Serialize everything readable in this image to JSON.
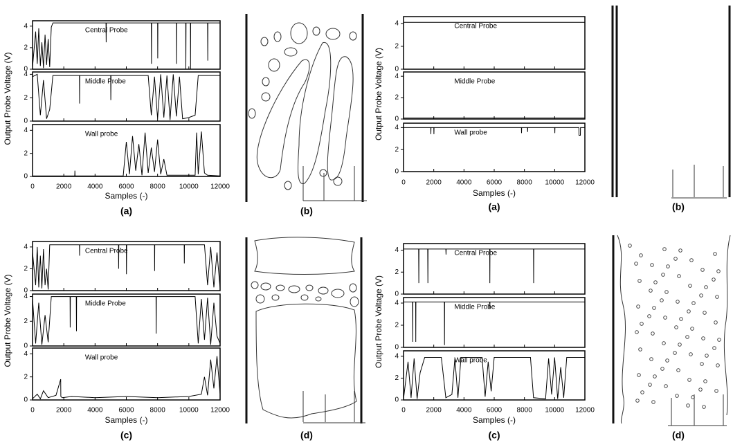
{
  "chart_data": [
    {
      "type": "line",
      "ylabel": "Output Probe Voltage (V)",
      "xlabel": "Samples (-)",
      "caption": "(a)",
      "xlim": [
        0,
        12000
      ],
      "xticks": [
        0,
        2000,
        4000,
        6000,
        8000,
        10000,
        12000
      ],
      "subplots": [
        {
          "label": "Central Probe",
          "color": "#000000",
          "ylim": [
            0,
            4.5
          ],
          "yticks": [
            0,
            2,
            4
          ],
          "x": [
            0,
            200,
            300,
            400,
            500,
            600,
            700,
            800,
            900,
            1000,
            1100,
            1200,
            1300,
            1400,
            4700,
            4710,
            4720,
            7600,
            7610,
            7620,
            8000,
            8010,
            8020,
            9200,
            9210,
            9220,
            9800,
            9810,
            9820,
            10100,
            10110,
            10120,
            11200,
            11210,
            11220,
            12000
          ],
          "values": [
            0.2,
            3.5,
            0.5,
            3.8,
            0.3,
            2.5,
            0.1,
            3.2,
            0.4,
            2.8,
            0.2,
            3.9,
            4.3,
            4.3,
            4.3,
            2.5,
            4.3,
            4.3,
            0.5,
            4.3,
            4.3,
            1.0,
            4.3,
            4.3,
            0.5,
            4.3,
            4.3,
            0.0,
            4.3,
            4.3,
            0.0,
            4.3,
            4.3,
            0.8,
            4.3,
            4.3
          ]
        },
        {
          "label": "Middle Probe",
          "color": "#000000",
          "ylim": [
            0,
            4.2
          ],
          "yticks": [
            0,
            2,
            4
          ],
          "x": [
            0,
            300,
            500,
            700,
            900,
            1100,
            1300,
            1500,
            3000,
            3010,
            3020,
            5000,
            5010,
            5020,
            7400,
            7600,
            7800,
            8000,
            8200,
            8400,
            8600,
            8800,
            9000,
            9200,
            9400,
            9600,
            10000,
            10400,
            10600,
            12000
          ],
          "values": [
            3.8,
            4.0,
            0.5,
            3.5,
            0.2,
            1.0,
            3.9,
            3.9,
            3.9,
            1.5,
            3.9,
            3.9,
            1.8,
            3.9,
            3.9,
            0.5,
            3.8,
            0.2,
            4.0,
            0.3,
            3.9,
            0.1,
            4.0,
            0.4,
            3.8,
            0.2,
            0.3,
            0.5,
            3.9,
            3.9
          ]
        },
        {
          "label": "Wall probe",
          "color": "#000000",
          "ylim": [
            0,
            4.5
          ],
          "yticks": [
            0,
            2,
            4
          ],
          "x": [
            0,
            2700,
            2710,
            2720,
            5800,
            6000,
            6200,
            6400,
            6600,
            6800,
            7000,
            7200,
            7400,
            7600,
            7800,
            8000,
            8200,
            8400,
            8600,
            9000,
            10400,
            10500,
            10600,
            10800,
            11000,
            11200,
            12000
          ],
          "values": [
            0.05,
            0.05,
            0.5,
            0.05,
            0.05,
            3.0,
            0.2,
            3.5,
            0.5,
            2.8,
            0.1,
            3.8,
            0.3,
            2.5,
            0.4,
            3.2,
            0.2,
            1.5,
            0.1,
            0.1,
            0.1,
            3.8,
            0.2,
            3.9,
            0.3,
            0.1,
            0.05
          ]
        }
      ]
    },
    {
      "type": "line",
      "ylabel": "Output Probe Voltage (V)",
      "xlabel": "Samples (-)",
      "caption": "(a)",
      "xlim": [
        0,
        12000
      ],
      "xticks": [
        0,
        2000,
        4000,
        6000,
        8000,
        10000,
        12000
      ],
      "subplots": [
        {
          "label": "Central Probe",
          "color": "#000000",
          "ylim": [
            0,
            4.6
          ],
          "yticks": [
            0,
            2,
            4
          ],
          "x": [
            0,
            12000
          ],
          "values": [
            4.1,
            4.1
          ]
        },
        {
          "label": "Middle Probe",
          "color": "#000000",
          "ylim": [
            0,
            4.4
          ],
          "yticks": [
            0,
            2,
            4
          ],
          "x": [
            0,
            12000
          ],
          "values": [
            0.1,
            0.1
          ]
        },
        {
          "label": "Wall probe",
          "color": "#000000",
          "ylim": [
            0,
            4.4
          ],
          "yticks": [
            0,
            2,
            4
          ],
          "x": [
            0,
            1800,
            1810,
            1820,
            2000,
            2010,
            2020,
            7800,
            7810,
            7820,
            8200,
            8210,
            8220,
            10000,
            10010,
            10020,
            11600,
            11610,
            11700,
            11710,
            12000
          ],
          "values": [
            4.0,
            4.0,
            3.4,
            4.0,
            4.0,
            3.4,
            4.0,
            4.0,
            3.5,
            4.0,
            4.0,
            3.6,
            4.0,
            4.0,
            3.5,
            4.0,
            4.0,
            3.3,
            3.3,
            4.0,
            4.0
          ]
        }
      ]
    },
    {
      "type": "line",
      "ylabel": "Output Probe Voltage (V)",
      "xlabel": "Samples (-)",
      "caption": "(c)",
      "xlim": [
        0,
        12000
      ],
      "xticks": [
        0,
        2000,
        4000,
        6000,
        8000,
        10000,
        12000
      ],
      "subplots": [
        {
          "label": "Central Probe",
          "color": "#000000",
          "ylim": [
            0,
            4.5
          ],
          "yticks": [
            0,
            2,
            4
          ],
          "x": [
            0,
            200,
            300,
            400,
            500,
            600,
            700,
            800,
            900,
            1000,
            1100,
            1200,
            3000,
            3010,
            3020,
            5500,
            5510,
            5520,
            6000,
            6010,
            6020,
            7800,
            7810,
            7820,
            9700,
            9710,
            9720,
            11000,
            11200,
            11400,
            11600,
            11800,
            12000
          ],
          "values": [
            3.5,
            0.5,
            4.0,
            0.3,
            3.2,
            0.2,
            3.8,
            0.5,
            2.0,
            0.1,
            4.2,
            4.2,
            4.2,
            3.2,
            4.2,
            4.2,
            2.0,
            4.2,
            4.2,
            1.5,
            4.2,
            4.2,
            1.8,
            4.2,
            4.2,
            2.5,
            4.2,
            4.2,
            0.5,
            4.0,
            0.3,
            3.5,
            0.2
          ]
        },
        {
          "label": "Middle Probe",
          "color": "#000000",
          "ylim": [
            0,
            4.2
          ],
          "yticks": [
            0,
            2,
            4
          ],
          "x": [
            0,
            200,
            400,
            600,
            800,
            1000,
            1200,
            1400,
            2400,
            2410,
            2420,
            2800,
            2810,
            2820,
            7900,
            7910,
            7920,
            10400,
            10600,
            10800,
            11000,
            11200,
            11400,
            11600,
            11800,
            12000
          ],
          "values": [
            3.8,
            0.2,
            3.5,
            0.1,
            2.5,
            0.3,
            4.0,
            4.0,
            4.0,
            1.5,
            4.0,
            4.0,
            1.2,
            4.0,
            4.0,
            1.0,
            4.0,
            4.0,
            0.2,
            3.8,
            0.5,
            3.9,
            0.1,
            3.5,
            0.8,
            0.2
          ]
        },
        {
          "label": "Wall probe",
          "color": "#000000",
          "ylim": [
            0,
            4.5
          ],
          "yticks": [
            0,
            2,
            4
          ],
          "x": [
            0,
            300,
            500,
            700,
            1000,
            1500,
            1800,
            1810,
            1900,
            2500,
            4000,
            6000,
            8000,
            10000,
            10800,
            11000,
            11200,
            11400,
            11600,
            11800,
            12000
          ],
          "values": [
            0.1,
            0.5,
            0.1,
            0.8,
            0.2,
            0.4,
            1.8,
            0.3,
            0.2,
            0.3,
            0.2,
            0.3,
            0.2,
            0.3,
            0.5,
            2.0,
            0.4,
            3.5,
            1.0,
            3.8,
            0.5
          ]
        }
      ]
    },
    {
      "type": "line",
      "ylabel": "Output Probe Voltage (V)",
      "xlabel": "Samples (-)",
      "caption": "(c)",
      "xlim": [
        0,
        12000
      ],
      "xticks": [
        0,
        2000,
        4000,
        6000,
        8000,
        10000,
        12000
      ],
      "subplots": [
        {
          "label": "Central Probe",
          "color": "#000000",
          "ylim": [
            0,
            4.6
          ],
          "yticks": [
            0,
            2,
            4
          ],
          "x": [
            0,
            1000,
            1010,
            1020,
            1600,
            1610,
            1620,
            2800,
            2810,
            2820,
            5700,
            5710,
            5720,
            8600,
            8610,
            8620,
            12000
          ],
          "values": [
            4.1,
            4.1,
            1.0,
            4.1,
            4.1,
            1.0,
            4.1,
            4.1,
            3.6,
            4.1,
            4.1,
            1.0,
            4.1,
            4.1,
            1.0,
            4.1,
            4.1
          ]
        },
        {
          "label": "Middle Probe",
          "color": "#000000",
          "ylim": [
            0,
            4.5
          ],
          "yticks": [
            0,
            2,
            4
          ],
          "x": [
            0,
            600,
            610,
            620,
            800,
            810,
            820,
            2700,
            2710,
            2720,
            5700,
            5710,
            5720,
            12000
          ],
          "values": [
            4.1,
            4.1,
            0.5,
            4.1,
            4.1,
            0.5,
            4.1,
            4.1,
            0.2,
            4.1,
            4.1,
            3.5,
            4.1,
            4.1
          ]
        },
        {
          "label": "Wall probe",
          "color": "#000000",
          "ylim": [
            0,
            4.5
          ],
          "yticks": [
            0,
            2,
            4
          ],
          "x": [
            0,
            300,
            500,
            700,
            900,
            1100,
            1400,
            1600,
            2500,
            2800,
            3200,
            3400,
            3600,
            3800,
            4000,
            4400,
            5200,
            5400,
            5600,
            5800,
            6000,
            6200,
            6400,
            8400,
            8600,
            9400,
            9600,
            9800,
            10000,
            10200,
            10400,
            10600,
            10800,
            11200,
            12000
          ],
          "values": [
            0.1,
            3.5,
            0.2,
            3.8,
            0.1,
            2.5,
            3.9,
            3.9,
            3.9,
            0.2,
            0.5,
            3.8,
            0.2,
            3.9,
            3.9,
            3.9,
            3.9,
            0.3,
            3.5,
            0.8,
            3.9,
            3.9,
            3.9,
            3.9,
            0.2,
            0.1,
            3.8,
            0.5,
            3.9,
            0.1,
            3.0,
            0.2,
            3.9,
            3.9,
            3.9
          ]
        }
      ]
    }
  ],
  "schematics": [
    "(b)",
    "(b)",
    "(d)",
    "(d)"
  ]
}
